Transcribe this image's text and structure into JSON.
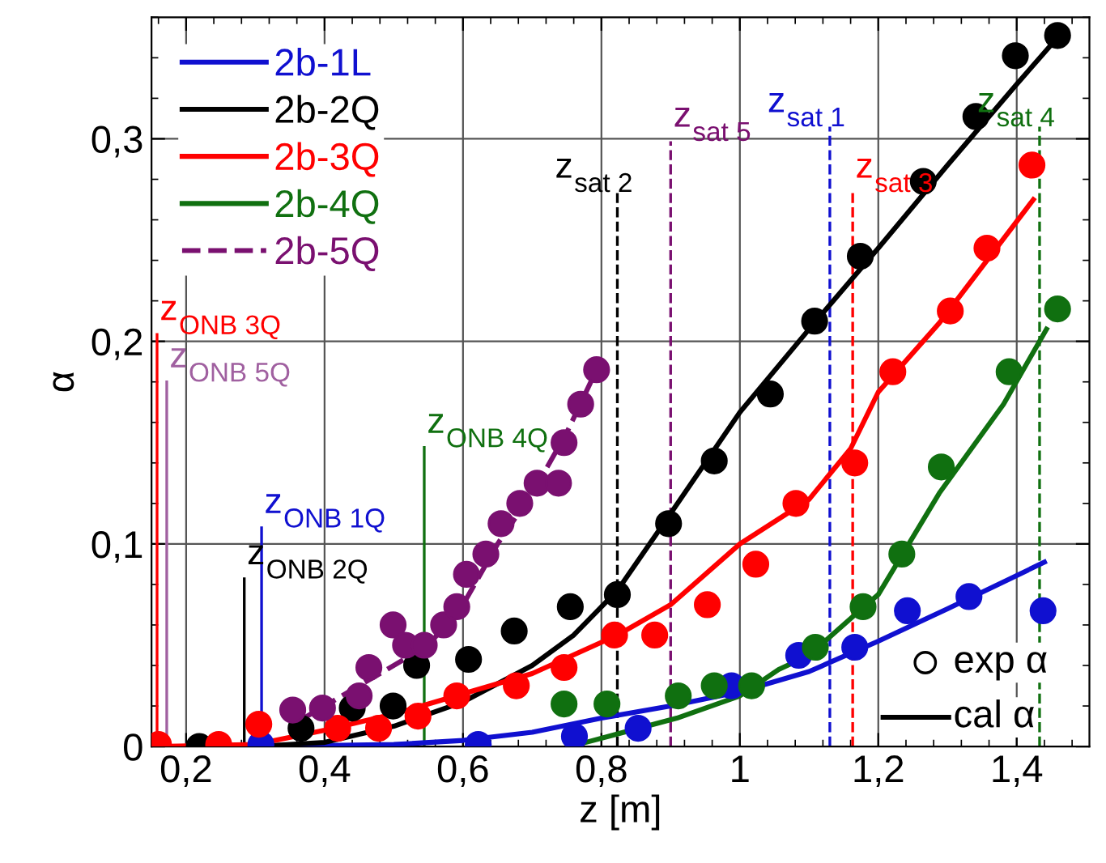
{
  "chart_data": {
    "type": "line",
    "xlabel": "z [m]",
    "ylabel": "α",
    "xlim": [
      0.15,
      1.505
    ],
    "ylim": [
      0,
      0.36
    ],
    "xticks": [
      {
        "value": 0.2,
        "label": "0,2"
      },
      {
        "value": 0.4,
        "label": "0,4"
      },
      {
        "value": 0.6,
        "label": "0,6"
      },
      {
        "value": 0.8,
        "label": "0,8"
      },
      1,
      {
        "value": 1.2,
        "label": "1,2"
      },
      {
        "value": 1.4,
        "label": "1,4"
      }
    ],
    "yticks": [
      0,
      {
        "value": 0.1,
        "label": "0,1"
      },
      {
        "value": 0.2,
        "label": "0,2"
      },
      {
        "value": 0.3,
        "label": "0,3"
      }
    ],
    "grid": true,
    "legend": "top left",
    "series": [
      {
        "name": "2b-1L",
        "color": "#1010d0",
        "x": [
          0.31,
          0.5,
          0.6,
          0.7,
          0.8,
          0.9,
          1.0,
          1.1,
          1.2,
          1.3,
          1.44
        ],
        "values": [
          0,
          0.001,
          0.003,
          0.007,
          0.014,
          0.02,
          0.027,
          0.037,
          0.052,
          0.068,
          0.091
        ]
      },
      {
        "name": "2b-2Q",
        "color": "#000000",
        "x": [
          0.3,
          0.4,
          0.5,
          0.6,
          0.7,
          0.76,
          0.823,
          0.9,
          1.0,
          1.1,
          1.2,
          1.3,
          1.4,
          1.459
        ],
        "values": [
          0,
          0.002,
          0.01,
          0.022,
          0.04,
          0.055,
          0.077,
          0.115,
          0.165,
          0.206,
          0.246,
          0.287,
          0.327,
          0.35
        ]
      },
      {
        "name": "2b-3Q",
        "color": "#ff0000",
        "x": [
          0.16,
          0.3,
          0.4,
          0.5,
          0.6,
          0.7,
          0.823,
          0.9,
          1.0,
          1.1,
          1.16,
          1.2,
          1.288,
          1.424
        ],
        "values": [
          0,
          0.001,
          0.008,
          0.016,
          0.026,
          0.036,
          0.055,
          0.07,
          0.1,
          0.122,
          0.147,
          0.175,
          0.209,
          0.27
        ]
      },
      {
        "name": "2b-4Q",
        "color": "#107010",
        "x": [
          0.777,
          0.909,
          1.0,
          1.056,
          1.1,
          1.176,
          1.2,
          1.288,
          1.381,
          1.443
        ],
        "values": [
          0.002,
          0.014,
          0.025,
          0.038,
          0.045,
          0.068,
          0.075,
          0.125,
          0.169,
          0.206
        ]
      },
      {
        "name": "2b-5Q",
        "color": "#7a1070",
        "line_style": "dashed",
        "x": [
          0.36,
          0.45,
          0.55,
          0.6,
          0.65,
          0.7,
          0.75,
          0.793
        ],
        "values": [
          0.012,
          0.03,
          0.05,
          0.07,
          0.1,
          0.125,
          0.155,
          0.186
        ]
      },
      {
        "color": "#1010d0",
        "type": "scatter",
        "marker": "circle",
        "x": [
          0.308,
          0.622,
          0.761,
          0.853,
          0.988,
          1.085,
          1.166,
          1.242,
          1.331,
          1.438
        ],
        "values": [
          0.001,
          0.001,
          0.005,
          0.009,
          0.03,
          0.045,
          0.049,
          0.067,
          0.074,
          0.067
        ]
      },
      {
        "color": "#000000",
        "type": "scatter",
        "marker": "circle",
        "x": [
          0.219,
          0.366,
          0.44,
          0.499,
          0.533,
          0.608,
          0.674,
          0.755,
          0.823,
          0.897,
          0.963,
          1.044,
          1.108,
          1.174,
          1.265,
          1.341,
          1.398,
          1.459
        ],
        "values": [
          0,
          0.009,
          0.019,
          0.02,
          0.04,
          0.043,
          0.057,
          0.069,
          0.075,
          0.11,
          0.141,
          0.174,
          0.21,
          0.242,
          0.279,
          0.311,
          0.341,
          0.351
        ]
      },
      {
        "color": "#ff0000",
        "type": "scatter",
        "marker": "circle",
        "x": [
          0.16,
          0.247,
          0.305,
          0.419,
          0.478,
          0.535,
          0.591,
          0.677,
          0.746,
          0.819,
          0.877,
          0.953,
          1.023,
          1.081,
          1.166,
          1.221,
          1.304,
          1.357,
          1.422
        ],
        "values": [
          0.001,
          0.001,
          0.011,
          0.009,
          0.009,
          0.015,
          0.025,
          0.03,
          0.039,
          0.055,
          0.055,
          0.07,
          0.09,
          0.12,
          0.14,
          0.185,
          0.215,
          0.246,
          0.287
        ]
      },
      {
        "color": "#107010",
        "type": "scatter",
        "marker": "circle",
        "x": [
          0.746,
          0.808,
          0.911,
          0.963,
          1.017,
          1.109,
          1.178,
          1.234,
          1.291,
          1.389,
          1.459
        ],
        "values": [
          0.021,
          0.021,
          0.025,
          0.03,
          0.03,
          0.049,
          0.069,
          0.095,
          0.138,
          0.185,
          0.216
        ]
      },
      {
        "color": "#7a1070",
        "type": "scatter",
        "marker": "circle",
        "x": [
          0.354,
          0.397,
          0.45,
          0.464,
          0.499,
          0.517,
          0.544,
          0.572,
          0.591,
          0.605,
          0.633,
          0.655,
          0.682,
          0.707,
          0.738,
          0.746,
          0.77,
          0.793
        ],
        "values": [
          0.018,
          0.019,
          0.025,
          0.039,
          0.06,
          0.05,
          0.05,
          0.06,
          0.069,
          0.085,
          0.095,
          0.11,
          0.12,
          0.13,
          0.13,
          0.15,
          0.169,
          0.186
        ]
      }
    ],
    "ref_lines": [
      {
        "axis": "x",
        "value": 0.158,
        "label": "z$_{ONB 3Q}$",
        "color": "#ff0000",
        "line_style": "solid"
      },
      {
        "axis": "x",
        "value": 0.172,
        "label": "z$_{ONB 5Q}$",
        "color": "#a060a0",
        "line_style": "solid"
      },
      {
        "axis": "x",
        "value": 0.309,
        "label": "z$_{ONB 1Q}$",
        "color": "#1010d0",
        "line_style": "solid"
      },
      {
        "axis": "x",
        "value": 0.284,
        "label": "z$_{ONB 2Q}$",
        "color": "#000000",
        "line_style": "solid"
      },
      {
        "axis": "x",
        "value": 0.544,
        "label": "z$_{ONB 4Q}$",
        "color": "#107010",
        "line_style": "solid"
      },
      {
        "axis": "x",
        "value": 0.823,
        "label": "z$_{sat 2}$",
        "color": "#000000",
        "line_style": "dashed"
      },
      {
        "axis": "x",
        "value": 0.9,
        "label": "z$_{sat 5}$",
        "color": "#7a1070",
        "line_style": "dashed"
      },
      {
        "axis": "x",
        "value": 1.13,
        "label": "z$_{sat 1}$",
        "color": "#1010d0",
        "line_style": "dashed"
      },
      {
        "axis": "x",
        "value": 1.163,
        "label": "z$_{sat 3}$",
        "color": "#ff0000",
        "line_style": "dashed"
      },
      {
        "axis": "x",
        "value": 1.433,
        "label": "z$_{sat 4}$",
        "color": "#107010",
        "line_style": "dashed"
      }
    ],
    "annotations": [
      "exp α",
      "cal α"
    ]
  }
}
